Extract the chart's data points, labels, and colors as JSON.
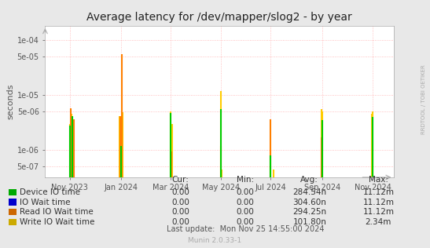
{
  "title": "Average latency for /dev/mapper/slog2 - by year",
  "ylabel": "seconds",
  "background_color": "#e8e8e8",
  "plot_background_color": "#ffffff",
  "grid_color": "#ffb0b0",
  "watermark": "RRDTOOL / TOBI OETIKER",
  "munin_label": "Munin 2.0.33-1",
  "ymin": 3.2e-07,
  "ymax": 0.00018,
  "series": [
    {
      "name": "Device IO time",
      "color": "#00cc00",
      "data": [
        [
          1698710400,
          2.8e-06
        ],
        [
          1699000000,
          4.2e-06
        ],
        [
          1704067200,
          1.2e-06
        ],
        [
          1709251200,
          4.8e-06
        ],
        [
          1714521600,
          5.5e-06
        ],
        [
          1719705600,
          8e-07
        ],
        [
          1725148800,
          3.5e-06
        ],
        [
          1730419200,
          4e-06
        ]
      ]
    },
    {
      "name": "IO Wait time",
      "color": "#0000ff",
      "data": []
    },
    {
      "name": "Read IO Wait time",
      "color": "#ff7f00",
      "data": [
        [
          1698797000,
          5.8e-06
        ],
        [
          1699100000,
          3.6e-06
        ],
        [
          1703980000,
          4.2e-06
        ],
        [
          1704163200,
          5.5e-05
        ],
        [
          1709338000,
          9.3e-07
        ],
        [
          1714521600,
          1.2e-06
        ],
        [
          1719705600,
          3.6e-06
        ],
        [
          1725062400,
          1.7e-06
        ],
        [
          1730419200,
          1.5e-06
        ]
      ]
    },
    {
      "name": "Write IO Wait time",
      "color": "#ffcc00",
      "data": [
        [
          1698710400,
          3e-06
        ],
        [
          1698883200,
          4.6e-06
        ],
        [
          1699000000,
          4.2e-06
        ],
        [
          1703894400,
          4.2e-06
        ],
        [
          1704067200,
          1.4e-06
        ],
        [
          1704250000,
          4.9e-06
        ],
        [
          1709251200,
          5e-06
        ],
        [
          1709430000,
          3e-06
        ],
        [
          1714521600,
          1.2e-05
        ],
        [
          1714608000,
          4.5e-07
        ],
        [
          1719705600,
          8e-07
        ],
        [
          1720051200,
          4.5e-07
        ],
        [
          1725062400,
          5.5e-06
        ],
        [
          1725148800,
          5e-06
        ],
        [
          1730332800,
          4.5e-06
        ],
        [
          1730419200,
          5e-06
        ]
      ]
    }
  ],
  "legend_items": [
    {
      "label": "Device IO time",
      "color": "#00aa00"
    },
    {
      "label": "IO Wait time",
      "color": "#0000cc"
    },
    {
      "label": "Read IO Wait time",
      "color": "#cc6600"
    },
    {
      "label": "Write IO Wait time",
      "color": "#ccaa00"
    }
  ],
  "legend_stats": {
    "cur": [
      "0.00",
      "0.00",
      "0.00",
      "0.00"
    ],
    "min": [
      "0.00",
      "0.00",
      "0.00",
      "0.00"
    ],
    "avg": [
      "284.54n",
      "304.60n",
      "294.25n",
      "101.80n"
    ],
    "max": [
      "11.12m",
      "11.12m",
      "11.12m",
      "2.34m"
    ]
  },
  "xticks": [
    {
      "ts": 1698710400,
      "label": "Nov 2023"
    },
    {
      "ts": 1704067200,
      "label": "Jan 2024"
    },
    {
      "ts": 1709251200,
      "label": "Mar 2024"
    },
    {
      "ts": 1714521600,
      "label": "May 2024"
    },
    {
      "ts": 1719705600,
      "label": "Jul 2024"
    },
    {
      "ts": 1725148800,
      "label": "Sep 2024"
    },
    {
      "ts": 1730419200,
      "label": "Nov 2024"
    }
  ],
  "xmin": 1696118400,
  "xmax": 1732579200
}
